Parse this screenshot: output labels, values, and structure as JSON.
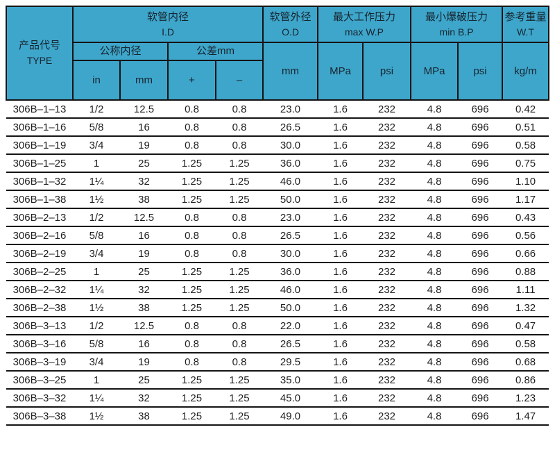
{
  "table": {
    "colors": {
      "header_bg": "#3EA6CB",
      "header_text": "#16242e",
      "border": "#141414",
      "body_text": "#1f1f1f",
      "body_bg": "#ffffff"
    },
    "header": {
      "type_zh": "产品代号",
      "type_en": "TYPE",
      "id_zh": "软管内径",
      "id_en": "I.D",
      "nominal_label": "公称内径",
      "tolerance_label": "公差mm",
      "col_in": "in",
      "col_mm": "mm",
      "col_plus": "+",
      "col_minus": "–",
      "od_zh": "软管外径",
      "od_en": "O.D",
      "od_unit": "mm",
      "wp_zh": "最大工作压力",
      "wp_en": "max W.P",
      "wp_mpa": "MPa",
      "wp_psi": "psi",
      "bp_zh": "最小爆破压力",
      "bp_en": "min B.P",
      "bp_mpa": "MPa",
      "bp_psi": "psi",
      "wt_zh": "参考重量",
      "wt_en": "W.T",
      "wt_unit": "kg/m"
    },
    "rows": [
      [
        "306B–1–13",
        "1/2",
        "12.5",
        "0.8",
        "0.8",
        "23.0",
        "1.6",
        "232",
        "4.8",
        "696",
        "0.42"
      ],
      [
        "306B–1–16",
        "5/8",
        "16",
        "0.8",
        "0.8",
        "26.5",
        "1.6",
        "232",
        "4.8",
        "696",
        "0.51"
      ],
      [
        "306B–1–19",
        "3/4",
        "19",
        "0.8",
        "0.8",
        "30.0",
        "1.6",
        "232",
        "4.8",
        "696",
        "0.58"
      ],
      [
        "306B–1–25",
        "1",
        "25",
        "1.25",
        "1.25",
        "36.0",
        "1.6",
        "232",
        "4.8",
        "696",
        "0.75"
      ],
      [
        "306B–1–32",
        "1¼",
        "32",
        "1.25",
        "1.25",
        "46.0",
        "1.6",
        "232",
        "4.8",
        "696",
        "1.10"
      ],
      [
        "306B–1–38",
        "1½",
        "38",
        "1.25",
        "1.25",
        "50.0",
        "1.6",
        "232",
        "4.8",
        "696",
        "1.17"
      ],
      [
        "306B–2–13",
        "1/2",
        "12.5",
        "0.8",
        "0.8",
        "23.0",
        "1.6",
        "232",
        "4.8",
        "696",
        "0.43"
      ],
      [
        "306B–2–16",
        "5/8",
        "16",
        "0.8",
        "0.8",
        "26.5",
        "1.6",
        "232",
        "4.8",
        "696",
        "0.56"
      ],
      [
        "306B–2–19",
        "3/4",
        "19",
        "0.8",
        "0.8",
        "30.0",
        "1.6",
        "232",
        "4.8",
        "696",
        "0.66"
      ],
      [
        "306B–2–25",
        "1",
        "25",
        "1.25",
        "1.25",
        "36.0",
        "1.6",
        "232",
        "4.8",
        "696",
        "0.88"
      ],
      [
        "306B–2–32",
        "1¼",
        "32",
        "1.25",
        "1.25",
        "46.0",
        "1.6",
        "232",
        "4.8",
        "696",
        "1.11"
      ],
      [
        "306B–2–38",
        "1½",
        "38",
        "1.25",
        "1.25",
        "50.0",
        "1.6",
        "232",
        "4.8",
        "696",
        "1.32"
      ],
      [
        "306B–3–13",
        "1/2",
        "12.5",
        "0.8",
        "0.8",
        "22.0",
        "1.6",
        "232",
        "4.8",
        "696",
        "0.47"
      ],
      [
        "306B–3–16",
        "5/8",
        "16",
        "0.8",
        "0.8",
        "26.5",
        "1.6",
        "232",
        "4.8",
        "696",
        "0.58"
      ],
      [
        "306B–3–19",
        "3/4",
        "19",
        "0.8",
        "0.8",
        "29.5",
        "1.6",
        "232",
        "4.8",
        "696",
        "0.68"
      ],
      [
        "306B–3–25",
        "1",
        "25",
        "1.25",
        "1.25",
        "35.0",
        "1.6",
        "232",
        "4.8",
        "696",
        "0.86"
      ],
      [
        "306B–3–32",
        "1¼",
        "32",
        "1.25",
        "1.25",
        "45.0",
        "1.6",
        "232",
        "4.8",
        "696",
        "1.23"
      ],
      [
        "306B–3–38",
        "1½",
        "38",
        "1.25",
        "1.25",
        "49.0",
        "1.6",
        "232",
        "4.8",
        "696",
        "1.47"
      ]
    ]
  }
}
